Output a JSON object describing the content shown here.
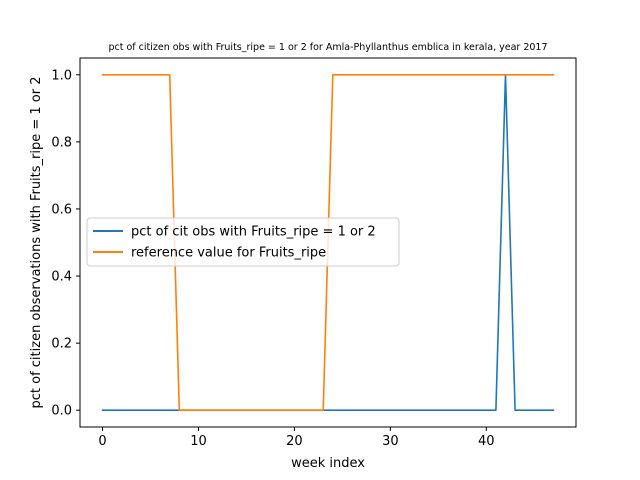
{
  "chart_data": {
    "type": "line",
    "title": "pct of citizen obs with Fruits_ripe = 1 or 2 for Amla-Phyllanthus emblica in kerala, year 2017",
    "xlabel": "week index",
    "ylabel": "pct of citizen observations with Fruits_ripe = 1 or 2",
    "xlim": [
      -2.35,
      49.35
    ],
    "ylim": [
      -0.05,
      1.05
    ],
    "xticks": [
      0,
      10,
      20,
      30,
      40
    ],
    "yticks": [
      0.0,
      0.2,
      0.4,
      0.6,
      0.8,
      1.0
    ],
    "xtick_labels": [
      "0",
      "10",
      "20",
      "30",
      "40"
    ],
    "ytick_labels": [
      "0.0",
      "0.2",
      "0.4",
      "0.6",
      "0.8",
      "1.0"
    ],
    "legend_position": "center-left",
    "grid": false,
    "series": [
      {
        "name": "pct of cit obs with Fruits_ripe = 1 or 2",
        "color": "#1f77b4",
        "x": [
          0,
          1,
          2,
          3,
          4,
          5,
          6,
          7,
          8,
          9,
          10,
          11,
          12,
          13,
          14,
          15,
          16,
          17,
          18,
          19,
          20,
          21,
          22,
          23,
          24,
          25,
          26,
          27,
          28,
          29,
          30,
          31,
          32,
          33,
          34,
          35,
          36,
          37,
          38,
          39,
          40,
          41,
          42,
          43,
          44,
          45,
          46,
          47
        ],
        "y": [
          0,
          0,
          0,
          0,
          0,
          0,
          0,
          0,
          0,
          0,
          0,
          0,
          0,
          0,
          0,
          0,
          0,
          0,
          0,
          0,
          0,
          0,
          0,
          0,
          0,
          0,
          0,
          0,
          0,
          0,
          0,
          0,
          0,
          0,
          0,
          0,
          0,
          0,
          0,
          0,
          0,
          0,
          1,
          0,
          0,
          0,
          0,
          0
        ]
      },
      {
        "name": "reference value for Fruits_ripe",
        "color": "#ff7f0e",
        "x": [
          0,
          1,
          2,
          3,
          4,
          5,
          6,
          7,
          8,
          9,
          10,
          11,
          12,
          13,
          14,
          15,
          16,
          17,
          18,
          19,
          20,
          21,
          22,
          23,
          24,
          25,
          26,
          27,
          28,
          29,
          30,
          31,
          32,
          33,
          34,
          35,
          36,
          37,
          38,
          39,
          40,
          41,
          42,
          43,
          44,
          45,
          46,
          47
        ],
        "y": [
          1,
          1,
          1,
          1,
          1,
          1,
          1,
          1,
          0,
          0,
          0,
          0,
          0,
          0,
          0,
          0,
          0,
          0,
          0,
          0,
          0,
          0,
          0,
          0,
          1,
          1,
          1,
          1,
          1,
          1,
          1,
          1,
          1,
          1,
          1,
          1,
          1,
          1,
          1,
          1,
          1,
          1,
          1,
          1,
          1,
          1,
          1,
          1
        ]
      }
    ]
  }
}
